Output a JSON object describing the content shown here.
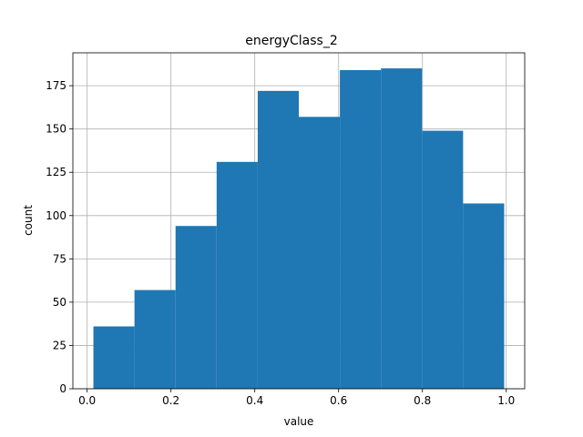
{
  "chart_data": {
    "type": "bar",
    "title": "energyClass_2",
    "xlabel": "value",
    "ylabel": "count",
    "bin_edges": [
      0.015,
      0.113,
      0.211,
      0.309,
      0.407,
      0.505,
      0.603,
      0.701,
      0.799,
      0.897,
      0.995
    ],
    "values": [
      36,
      57,
      94,
      131,
      172,
      157,
      184,
      185,
      149,
      107
    ],
    "xlim": [
      -0.034,
      1.044
    ],
    "ylim": [
      0,
      194
    ],
    "xticks": [
      0.0,
      0.2,
      0.4,
      0.6,
      0.8,
      1.0
    ],
    "xtick_labels": [
      "0.0",
      "0.2",
      "0.4",
      "0.6",
      "0.8",
      "1.0"
    ],
    "yticks": [
      0,
      25,
      50,
      75,
      100,
      125,
      150,
      175
    ],
    "ytick_labels": [
      "0",
      "25",
      "50",
      "75",
      "100",
      "125",
      "150",
      "175"
    ],
    "grid": true,
    "bar_color": "#1f77b4",
    "grid_color": "#b0b0b0"
  }
}
